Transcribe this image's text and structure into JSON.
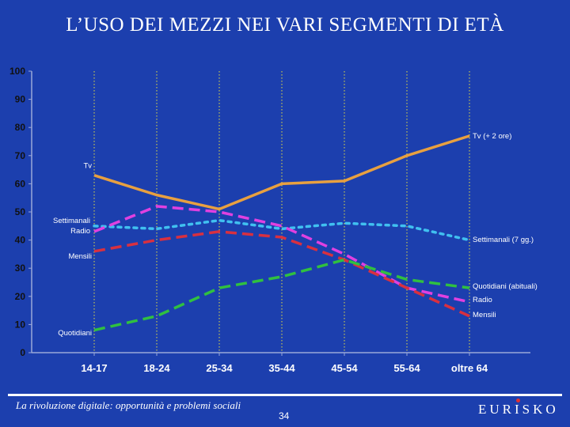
{
  "slide": {
    "title": "L’USO DEI MEZZI NEI VARI SEGMENTI DI ETÀ",
    "footer_caption": "La rivoluzione digitale: opportunità e problemi sociali",
    "page_number": "34",
    "brand": "EURISKO"
  },
  "colors": {
    "background": "#1c3fae",
    "tv_plus_2": "#e8a040",
    "tv": "#e8a040",
    "settimanali": "#40c0f0",
    "radio": "#e040e0",
    "mensili": "#d83040",
    "quotidiani": "#30c040"
  },
  "chart_data": {
    "type": "line",
    "title": "",
    "xlabel": "",
    "ylabel": "",
    "ylim": [
      0,
      100
    ],
    "yticks": [
      0,
      10,
      20,
      30,
      40,
      50,
      60,
      70,
      80,
      90,
      100
    ],
    "grid": "vertical dotted lines",
    "categories": [
      "14-17",
      "18-24",
      "25-34",
      "35-44",
      "45-54",
      "55-64",
      "oltre 64"
    ],
    "series": [
      {
        "key": "tv",
        "style": "solid",
        "color": "#e8a040",
        "values": [
          63,
          56,
          51,
          60,
          61,
          70,
          77
        ],
        "start_label": "Tv",
        "end_label": "Tv (+ 2 ore)"
      },
      {
        "key": "settimanali",
        "style": "dotted",
        "color": "#40c0f0",
        "values": [
          45,
          44,
          47,
          44,
          46,
          45,
          40
        ],
        "start_label": "Settimanali",
        "end_label": "Settimanali (7 gg.)"
      },
      {
        "key": "radio",
        "style": "dashed",
        "color": "#e040e0",
        "values": [
          43,
          52,
          50,
          45,
          35,
          23,
          18
        ],
        "start_label": "Radio",
        "end_label": "Radio"
      },
      {
        "key": "mensili",
        "style": "dashed",
        "color": "#d83040",
        "values": [
          36,
          40,
          43,
          41,
          33,
          23,
          13
        ],
        "start_label": "Mensili",
        "end_label": "Mensili"
      },
      {
        "key": "quotidiani",
        "style": "dashed",
        "color": "#30c040",
        "values": [
          8,
          13,
          23,
          27,
          33,
          26,
          23
        ],
        "start_label": "Quotidiani",
        "end_label": "Quotidiani (abituali)"
      }
    ]
  }
}
